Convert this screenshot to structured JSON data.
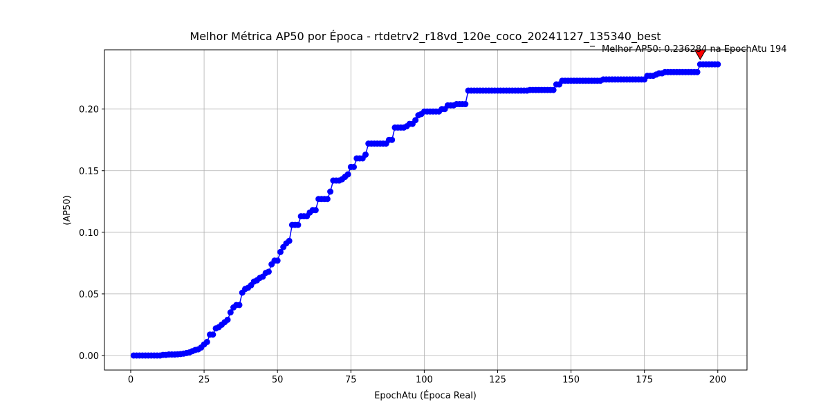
{
  "chart_data": {
    "type": "line",
    "title": "Melhor Métrica AP50 por Época - rtdetrv2_r18vd_120e_coco_20241127_135340_best",
    "x_label": "EpochAtu (Época Real)",
    "y_label": "(AP50)",
    "annotation": "Melhor AP50: 0.236284 na EpochAtu 194",
    "best": {
      "x": 194,
      "value": 0.236284,
      "color": "#ff0000"
    },
    "xlim": [
      -8.95,
      209.95
    ],
    "ylim": [
      -0.0118,
      0.2481
    ],
    "xticks": [
      0,
      25,
      50,
      75,
      100,
      125,
      150,
      175,
      200
    ],
    "yticks": [
      {
        "value": 0,
        "label": "0.00"
      },
      {
        "value": 0.05,
        "label": "0.05"
      },
      {
        "value": 0.1,
        "label": "0.10"
      },
      {
        "value": 0.15,
        "label": "0.15"
      },
      {
        "value": 0.2,
        "label": "0.20"
      }
    ],
    "grid": true,
    "x": [
      1,
      2,
      3,
      4,
      5,
      6,
      7,
      8,
      9,
      10,
      11,
      12,
      13,
      14,
      15,
      16,
      17,
      18,
      19,
      20,
      21,
      22,
      23,
      24,
      25,
      26,
      27,
      28,
      29,
      30,
      31,
      32,
      33,
      34,
      35,
      36,
      37,
      38,
      39,
      40,
      41,
      42,
      43,
      44,
      45,
      46,
      47,
      48,
      49,
      50,
      51,
      52,
      53,
      54,
      55,
      56,
      57,
      58,
      59,
      60,
      61,
      62,
      63,
      64,
      65,
      66,
      67,
      68,
      69,
      70,
      71,
      72,
      73,
      74,
      75,
      76,
      77,
      78,
      79,
      80,
      81,
      82,
      83,
      84,
      85,
      86,
      87,
      88,
      89,
      90,
      91,
      92,
      93,
      94,
      95,
      96,
      97,
      98,
      99,
      100,
      101,
      102,
      103,
      104,
      105,
      106,
      107,
      108,
      109,
      110,
      111,
      112,
      113,
      114,
      115,
      116,
      117,
      118,
      119,
      120,
      121,
      122,
      123,
      124,
      125,
      126,
      127,
      128,
      129,
      130,
      131,
      132,
      133,
      134,
      135,
      136,
      137,
      138,
      139,
      140,
      141,
      142,
      143,
      144,
      145,
      146,
      147,
      148,
      149,
      150,
      151,
      152,
      153,
      154,
      155,
      156,
      157,
      158,
      159,
      160,
      161,
      162,
      163,
      164,
      165,
      166,
      167,
      168,
      169,
      170,
      171,
      172,
      173,
      174,
      175,
      176,
      177,
      178,
      179,
      180,
      181,
      182,
      183,
      184,
      185,
      186,
      187,
      188,
      189,
      190,
      191,
      192,
      193,
      194,
      195,
      196,
      197,
      198,
      199,
      200
    ],
    "series": [
      {
        "color": "#0000ff",
        "values": [
          0,
          0,
          0,
          0,
          0,
          0,
          0,
          0,
          0,
          0,
          0.0005,
          0.0005,
          0.0008,
          0.0008,
          0.0008,
          0.001,
          0.0012,
          0.0015,
          0.002,
          0.0025,
          0.0035,
          0.0045,
          0.005,
          0.0065,
          0.009,
          0.011,
          0.017,
          0.017,
          0.022,
          0.023,
          0.025,
          0.027,
          0.029,
          0.035,
          0.039,
          0.041,
          0.041,
          0.051,
          0.054,
          0.055,
          0.057,
          0.06,
          0.061,
          0.063,
          0.064,
          0.067,
          0.068,
          0.074,
          0.077,
          0.077,
          0.084,
          0.088,
          0.091,
          0.093,
          0.106,
          0.106,
          0.106,
          0.113,
          0.113,
          0.113,
          0.116,
          0.118,
          0.118,
          0.127,
          0.127,
          0.127,
          0.127,
          0.133,
          0.142,
          0.142,
          0.142,
          0.143,
          0.145,
          0.147,
          0.153,
          0.153,
          0.16,
          0.16,
          0.16,
          0.163,
          0.172,
          0.172,
          0.172,
          0.172,
          0.172,
          0.172,
          0.172,
          0.175,
          0.175,
          0.185,
          0.185,
          0.185,
          0.185,
          0.186,
          0.188,
          0.188,
          0.191,
          0.195,
          0.196,
          0.198,
          0.198,
          0.198,
          0.198,
          0.198,
          0.198,
          0.2,
          0.2,
          0.203,
          0.203,
          0.203,
          0.204,
          0.204,
          0.204,
          0.204,
          0.215,
          0.215,
          0.215,
          0.215,
          0.215,
          0.215,
          0.215,
          0.215,
          0.215,
          0.215,
          0.215,
          0.215,
          0.215,
          0.215,
          0.215,
          0.215,
          0.215,
          0.215,
          0.215,
          0.215,
          0.215,
          0.2155,
          0.2155,
          0.2155,
          0.2155,
          0.2155,
          0.2155,
          0.2155,
          0.2155,
          0.2155,
          0.22,
          0.22,
          0.223,
          0.223,
          0.223,
          0.223,
          0.223,
          0.223,
          0.223,
          0.223,
          0.223,
          0.223,
          0.223,
          0.223,
          0.223,
          0.223,
          0.224,
          0.224,
          0.224,
          0.224,
          0.224,
          0.224,
          0.224,
          0.224,
          0.224,
          0.224,
          0.224,
          0.224,
          0.224,
          0.224,
          0.224,
          0.227,
          0.227,
          0.227,
          0.228,
          0.229,
          0.229,
          0.23,
          0.23,
          0.23,
          0.23,
          0.23,
          0.23,
          0.23,
          0.23,
          0.23,
          0.23,
          0.23,
          0.23,
          0.236284,
          0.236284,
          0.236284,
          0.236284,
          0.236284,
          0.236284,
          0.236284
        ]
      }
    ]
  }
}
